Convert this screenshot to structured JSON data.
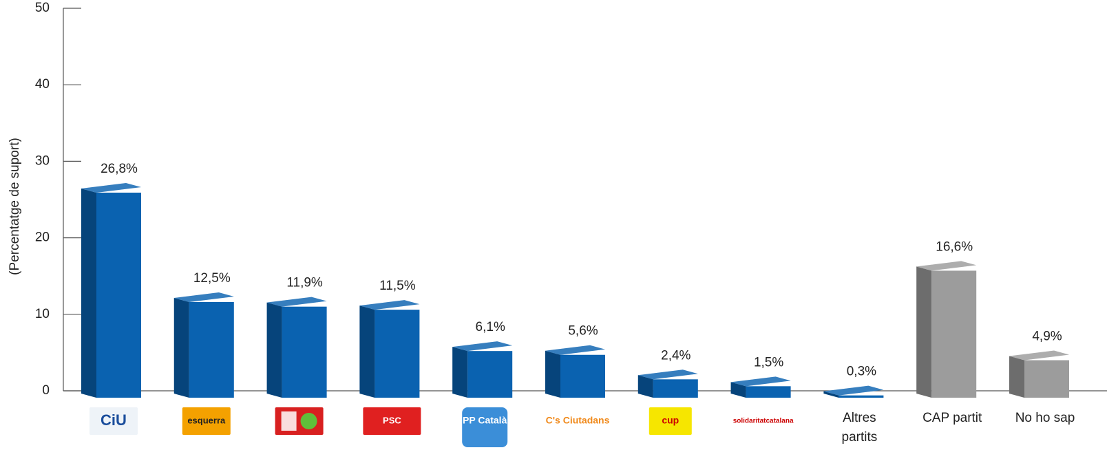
{
  "chart_data": {
    "type": "bar3d",
    "y_label": "(Percentatge de suport)",
    "categories": [
      "CiU",
      "esquerra",
      null,
      "PSC",
      "PP Català",
      "C's Ciutadans",
      "cup",
      "solidaritatcatalana",
      "Altres partits",
      "CAP partit",
      "No ho sap"
    ],
    "values": [
      26.8,
      12.5,
      11.9,
      11.5,
      6.1,
      5.6,
      2.4,
      1.5,
      0.3,
      16.6,
      4.9
    ],
    "value_labels": [
      "26,8%",
      "12,5%",
      "11,9%",
      "11,5%",
      "6,1%",
      "5,6%",
      "2,4%",
      "1,5%",
      "0,3%",
      "16,6%",
      "4,9%"
    ],
    "colors": [
      "#0a62b0",
      "#0a62b0",
      "#0a62b0",
      "#0a62b0",
      "#0a62b0",
      "#0a62b0",
      "#0a62b0",
      "#0a62b0",
      "#0a62b0",
      "#9c9c9c",
      "#9c9c9c"
    ],
    "ylim": [
      0,
      50
    ],
    "yticks": [
      0,
      10,
      20,
      30,
      40,
      50
    ]
  }
}
